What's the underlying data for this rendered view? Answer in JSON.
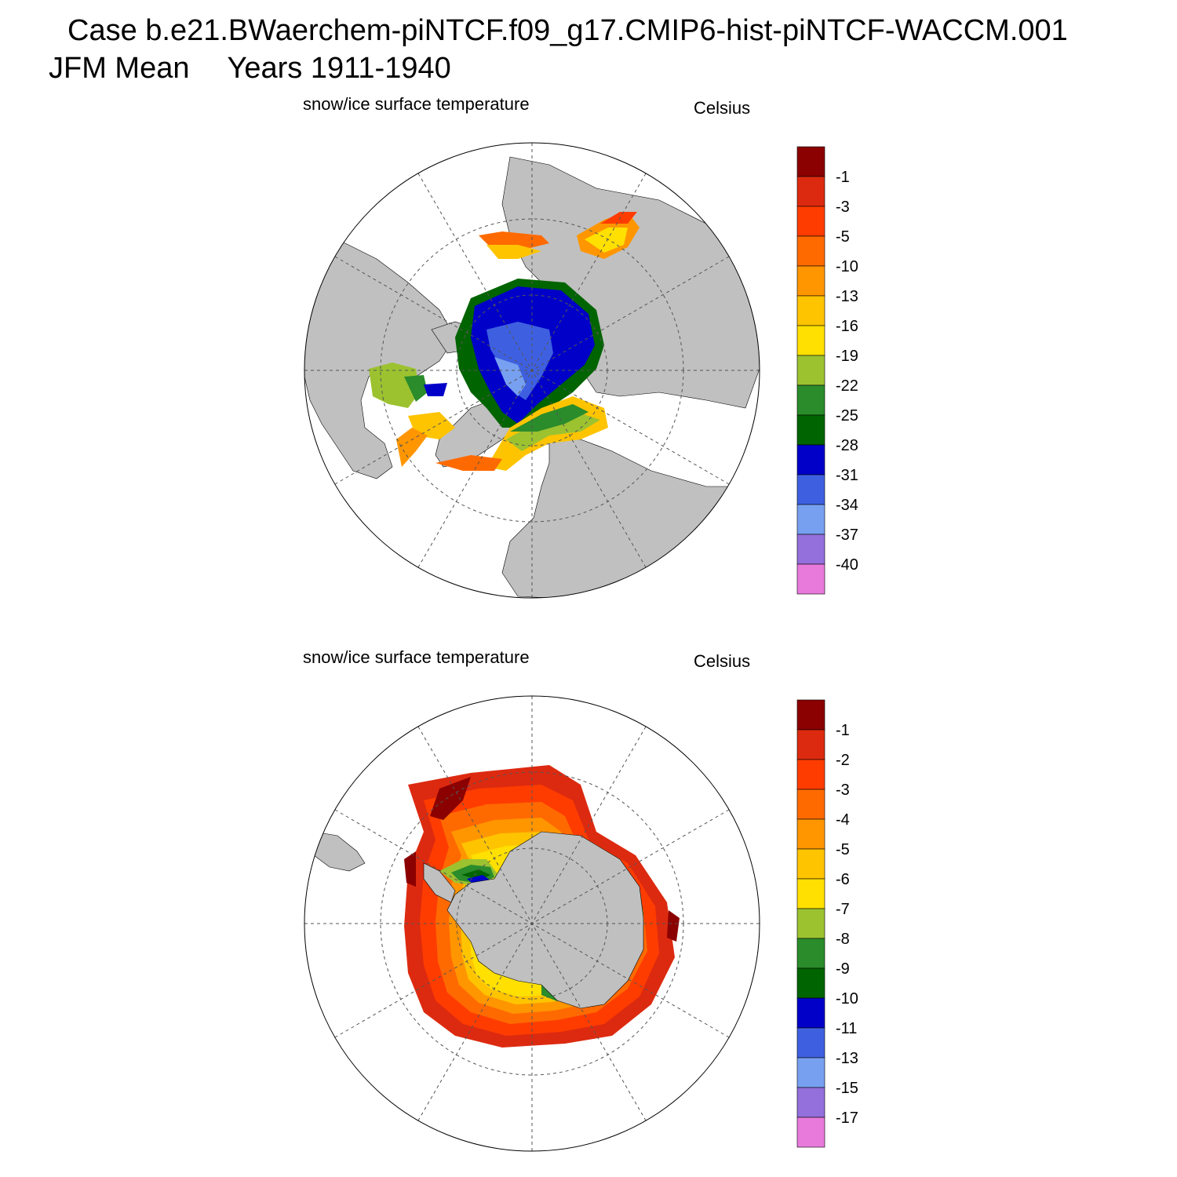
{
  "header": {
    "case_line": "Case b.e21.BWaerchem-piNTCF.f09_g17.CMIP6-hist-piNTCF-WACCM.001",
    "season": "JFM Mean",
    "years": "Years 1911-1940"
  },
  "panels": [
    {
      "id": "arctic",
      "variable": "snow/ice surface temperature",
      "units": "Celsius",
      "hemisphere": "north",
      "colorbar": {
        "labels": [
          "-1",
          "-3",
          "-5",
          "-10",
          "-13",
          "-16",
          "-19",
          "-22",
          "-25",
          "-28",
          "-31",
          "-34",
          "-37",
          "-40"
        ],
        "colors": [
          "#8b0000",
          "#dc2a10",
          "#ff3c00",
          "#ff6a00",
          "#ff9600",
          "#ffc400",
          "#ffe000",
          "#9cc230",
          "#2a8c2a",
          "#006400",
          "#0000c8",
          "#3e60e0",
          "#78a0f0",
          "#9370db",
          "#e87adc"
        ]
      }
    },
    {
      "id": "antarctic",
      "variable": "snow/ice surface temperature",
      "units": "Celsius",
      "hemisphere": "south",
      "colorbar": {
        "labels": [
          "-1",
          "-2",
          "-3",
          "-4",
          "-5",
          "-6",
          "-7",
          "-8",
          "-9",
          "-10",
          "-11",
          "-13",
          "-15",
          "-17"
        ],
        "colors": [
          "#8b0000",
          "#dc2a10",
          "#ff3c00",
          "#ff6a00",
          "#ff9600",
          "#ffc400",
          "#ffe000",
          "#9cc230",
          "#2a8c2a",
          "#006400",
          "#0000c8",
          "#3e60e0",
          "#78a0f0",
          "#9370db",
          "#e87adc"
        ]
      }
    }
  ],
  "style": {
    "land": "#c0c0c0",
    "ocean": "#ffffff",
    "grid": "#555555"
  }
}
